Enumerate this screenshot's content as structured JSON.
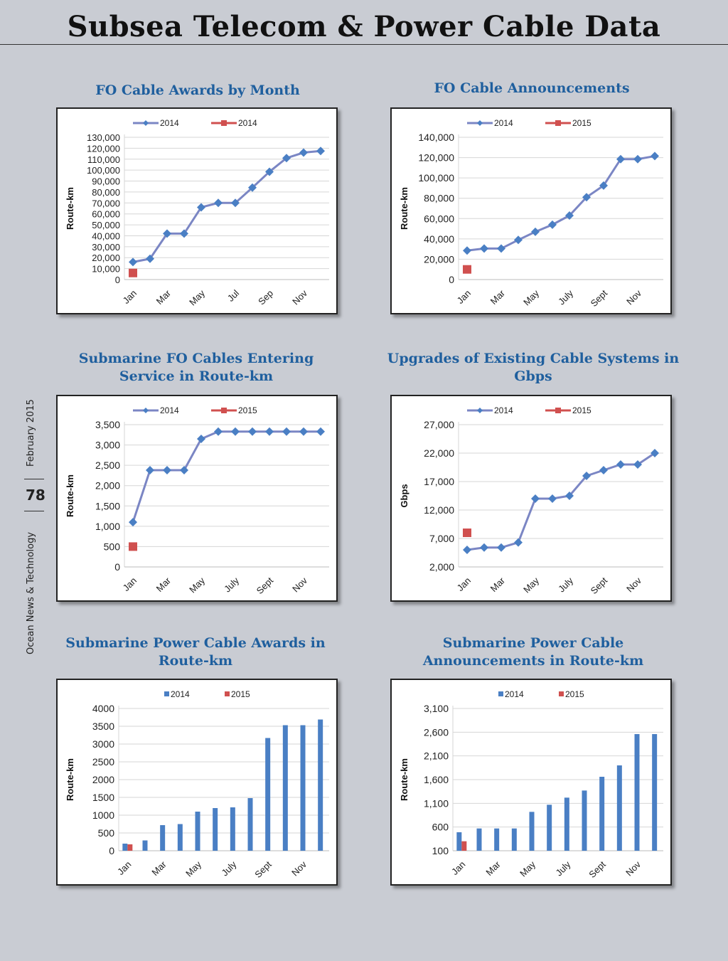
{
  "page": {
    "title": "Subsea Telecom & Power Cable Data",
    "sidebar_date": "February 2015",
    "page_number": "78",
    "publication": "Ocean News & Technology"
  },
  "colors": {
    "series_2014": "#4a7fc4",
    "series_2014_line": "#7b86c4",
    "series_2015": "#d0504f",
    "title": "#1f5f9e"
  },
  "chart_data": [
    {
      "title": "FO Cable Awards by Month",
      "type": "line",
      "ylabel": "Route-km",
      "ylim": [
        0,
        130000
      ],
      "yticks": [
        0,
        10000,
        20000,
        30000,
        40000,
        50000,
        60000,
        70000,
        80000,
        90000,
        100000,
        110000,
        120000,
        130000
      ],
      "ytick_labels": [
        "0",
        "10,000",
        "20,000",
        "30,000",
        "40,000",
        "50,000",
        "60,000",
        "70,000",
        "80,000",
        "90,000",
        "100,000",
        "110,000",
        "120,000",
        "130,000"
      ],
      "xtick_labels": [
        "Jan",
        "Mar",
        "May",
        "Jul",
        "Sep",
        "Nov"
      ],
      "legend": "top",
      "series": [
        {
          "name": "2014",
          "values": [
            16000,
            19000,
            42000,
            42000,
            66000,
            70000,
            70000,
            84000,
            98500,
            111000,
            116000,
            117500
          ]
        },
        {
          "name": "2014",
          "values": [
            6000
          ]
        }
      ]
    },
    {
      "title": "FO Cable Announcements",
      "type": "line",
      "ylabel": "Route-km",
      "ylim": [
        0,
        140000
      ],
      "yticks": [
        0,
        20000,
        40000,
        60000,
        80000,
        100000,
        120000,
        140000
      ],
      "ytick_labels": [
        "0",
        "20,000",
        "40,000",
        "60,000",
        "80,000",
        "100,000",
        "120,000",
        "140,000"
      ],
      "xtick_labels": [
        "Jan",
        "Mar",
        "May",
        "July",
        "Sept",
        "Nov"
      ],
      "legend": "top",
      "series": [
        {
          "name": "2014",
          "values": [
            28500,
            30500,
            30500,
            39000,
            47000,
            54000,
            63000,
            81000,
            92500,
            118500,
            118500,
            121500
          ]
        },
        {
          "name": "2015",
          "values": [
            10000
          ]
        }
      ]
    },
    {
      "title": "Submarine FO Cables Entering Service in Route-km",
      "type": "line",
      "ylabel": "Route-km",
      "ylim": [
        0,
        3500
      ],
      "yticks": [
        0,
        500,
        1000,
        1500,
        2000,
        2500,
        3000,
        3500
      ],
      "ytick_labels": [
        "0",
        "500",
        "1,000",
        "1,500",
        "2,000",
        "2,500",
        "3,000",
        "3,500"
      ],
      "xtick_labels": [
        "Jan",
        "Mar",
        "May",
        "July",
        "Sept",
        "Nov"
      ],
      "legend": "top",
      "series": [
        {
          "name": "2014",
          "values": [
            1100,
            2380,
            2380,
            2380,
            3150,
            3330,
            3330,
            3330,
            3330,
            3330,
            3330,
            3330
          ]
        },
        {
          "name": "2015",
          "values": [
            500
          ]
        }
      ]
    },
    {
      "title": "Upgrades of Existing Cable Systems in Gbps",
      "type": "line",
      "ylabel": "Gbps",
      "ylim": [
        2000,
        27000
      ],
      "yticks": [
        2000,
        7000,
        12000,
        17000,
        22000,
        27000
      ],
      "ytick_labels": [
        "2,000",
        "7,000",
        "12,000",
        "17,000",
        "22,000",
        "27,000"
      ],
      "xtick_labels": [
        "Jan",
        "Mar",
        "May",
        "July",
        "Sept",
        "Nov"
      ],
      "legend": "top",
      "series": [
        {
          "name": "2014",
          "values": [
            5000,
            5400,
            5400,
            6300,
            14000,
            14000,
            14500,
            18000,
            19000,
            20000,
            20000,
            22000
          ]
        },
        {
          "name": "2015",
          "values": [
            8000
          ]
        }
      ]
    },
    {
      "title": "Submarine Power Cable Awards in Route-km",
      "type": "bar",
      "ylabel": "Route-km",
      "ylim": [
        0,
        4000
      ],
      "yticks": [
        0,
        500,
        1000,
        1500,
        2000,
        2500,
        3000,
        3500,
        4000
      ],
      "ytick_labels": [
        "0",
        "500",
        "1000",
        "1500",
        "2000",
        "2500",
        "3000",
        "3500",
        "4000"
      ],
      "xtick_labels": [
        "Jan",
        "Mar",
        "May",
        "July",
        "Sept",
        "Nov"
      ],
      "legend": "top",
      "series": [
        {
          "name": "2014",
          "values": [
            200,
            290,
            720,
            750,
            1100,
            1200,
            1220,
            1480,
            3170,
            3530,
            3530,
            3690
          ]
        },
        {
          "name": "2015",
          "values": [
            180
          ]
        }
      ]
    },
    {
      "title": "Submarine Power Cable Announcements in Route-km",
      "type": "bar",
      "ylabel": "Route-km",
      "ylim": [
        100,
        3100
      ],
      "yticks": [
        100,
        600,
        1100,
        1600,
        2100,
        2600,
        3100
      ],
      "ytick_labels": [
        "100",
        "600",
        "1,100",
        "1,600",
        "2,100",
        "2,600",
        "3,100"
      ],
      "xtick_labels": [
        "Jan",
        "Mar",
        "May",
        "July",
        "Sept",
        "Nov"
      ],
      "legend": "top",
      "series": [
        {
          "name": "2014",
          "values": [
            490,
            570,
            570,
            570,
            920,
            1070,
            1220,
            1370,
            1660,
            1900,
            2560,
            2560
          ]
        },
        {
          "name": "2015",
          "values": [
            300
          ]
        }
      ]
    }
  ]
}
